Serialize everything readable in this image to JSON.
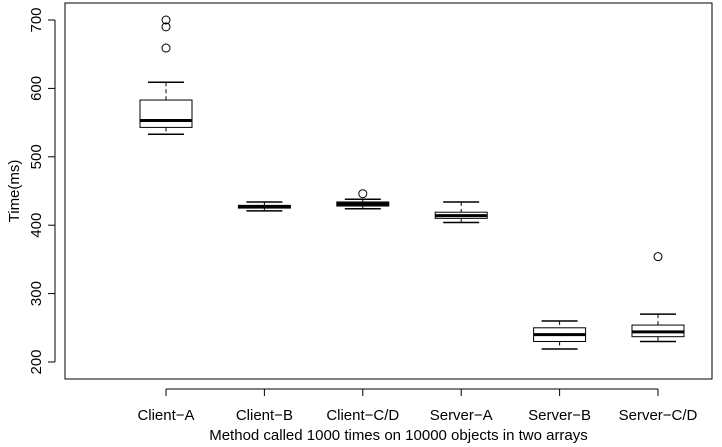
{
  "chart_data": {
    "type": "boxplot",
    "title": "",
    "xlabel": "Method called 1000 times on 10000 objects in two arrays",
    "ylabel": "Time(ms)",
    "ylim": [
      200,
      700
    ],
    "yticks": [
      200,
      300,
      400,
      500,
      600,
      700
    ],
    "categories": [
      "Client−A",
      "Client−B",
      "Client−C/D",
      "Server−A",
      "Server−B",
      "Server−C/D"
    ],
    "boxes": [
      {
        "whisker_low": 533,
        "q1": 543,
        "median": 553,
        "q3": 583,
        "whisker_high": 609,
        "outliers": [
          659,
          690,
          700
        ]
      },
      {
        "whisker_low": 421,
        "q1": 425,
        "median": 427,
        "q3": 429,
        "whisker_high": 434,
        "outliers": []
      },
      {
        "whisker_low": 424,
        "q1": 428,
        "median": 431,
        "q3": 434,
        "whisker_high": 438,
        "outliers": [
          446
        ]
      },
      {
        "whisker_low": 404,
        "q1": 410,
        "median": 414,
        "q3": 419,
        "whisker_high": 434,
        "outliers": []
      },
      {
        "whisker_low": 219,
        "q1": 230,
        "median": 240,
        "q3": 250,
        "whisker_high": 260,
        "outliers": []
      },
      {
        "whisker_low": 230,
        "q1": 237,
        "median": 244,
        "q3": 254,
        "whisker_high": 270,
        "outliers": [
          354
        ]
      }
    ],
    "grid": false,
    "legend": "none",
    "colors": {
      "box_fill": "#ffffff",
      "stroke": "#000000"
    }
  }
}
